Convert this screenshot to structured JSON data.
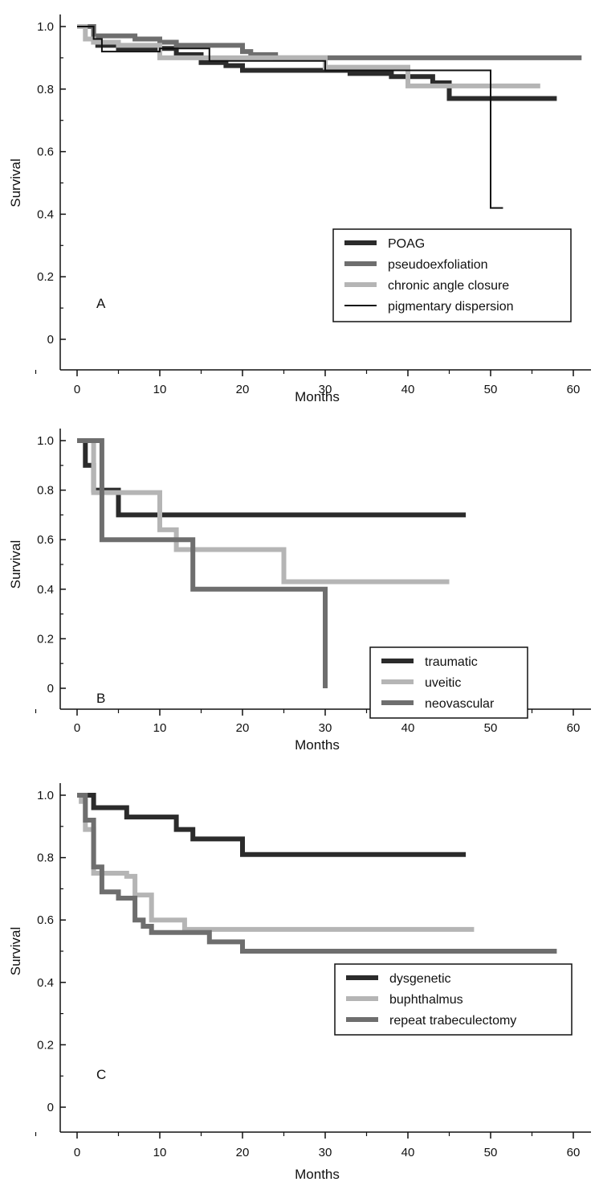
{
  "chart_data": [
    {
      "type": "line",
      "step": true,
      "panel_label": "A",
      "xlabel": "Months",
      "ylabel": "Survival",
      "xlim": [
        0,
        60
      ],
      "ylim": [
        0,
        1.0
      ],
      "x_ticks": [
        0,
        10,
        20,
        30,
        40,
        50,
        60
      ],
      "y_ticks": [
        0,
        0.2,
        0.4,
        0.6,
        0.8,
        1.0
      ],
      "x_tick_labels": [
        "0",
        "10",
        "20",
        "30",
        "40",
        "50",
        "60"
      ],
      "y_tick_labels": [
        "0",
        "0.2",
        "0.4",
        "0.6",
        "0.8",
        "1.0"
      ],
      "legend_position": "right",
      "series": [
        {
          "name": "POAG",
          "color": "#2b2b2b",
          "width": 6,
          "x": [
            0,
            2,
            2.5,
            5,
            12,
            15,
            18,
            20,
            33,
            38,
            43,
            45,
            58
          ],
          "y": [
            1.0,
            0.95,
            0.94,
            0.93,
            0.91,
            0.885,
            0.875,
            0.86,
            0.85,
            0.84,
            0.82,
            0.77,
            0.77
          ]
        },
        {
          "name": "pseudoexfoliation",
          "color": "#6e6e6e",
          "width": 6,
          "x": [
            0,
            2,
            7,
            10,
            12,
            20,
            21,
            24,
            61
          ],
          "y": [
            1.0,
            0.97,
            0.96,
            0.95,
            0.94,
            0.92,
            0.91,
            0.9,
            0.9
          ]
        },
        {
          "name": "chronic angle closure",
          "color": "#b5b5b5",
          "width": 6,
          "x": [
            0,
            1,
            2,
            5,
            10,
            30,
            40,
            56
          ],
          "y": [
            1.0,
            0.96,
            0.95,
            0.94,
            0.9,
            0.87,
            0.81,
            0.81
          ]
        },
        {
          "name": "pigmentary dispersion",
          "color": "#111111",
          "width": 2,
          "x": [
            0,
            2,
            3,
            10,
            16,
            30,
            50,
            51.5
          ],
          "y": [
            1.0,
            0.96,
            0.92,
            0.93,
            0.89,
            0.86,
            0.42,
            0.42
          ]
        }
      ]
    },
    {
      "type": "line",
      "step": true,
      "panel_label": "B",
      "xlabel": "Months",
      "ylabel": "Survival",
      "xlim": [
        0,
        60
      ],
      "ylim": [
        0,
        1.0
      ],
      "x_ticks": [
        0,
        10,
        20,
        30,
        40,
        50,
        60
      ],
      "y_ticks": [
        0,
        0.2,
        0.4,
        0.6,
        0.8,
        1.0
      ],
      "x_tick_labels": [
        "0",
        "10",
        "20",
        "30",
        "40",
        "50",
        "60"
      ],
      "y_tick_labels": [
        "0",
        "0.2",
        "0.4",
        "0.6",
        "0.8",
        "1.0"
      ],
      "legend_position": "right",
      "series": [
        {
          "name": "traumatic",
          "color": "#2b2b2b",
          "width": 6,
          "x": [
            0,
            1,
            2,
            5,
            47
          ],
          "y": [
            1.0,
            0.9,
            0.8,
            0.7,
            0.7
          ]
        },
        {
          "name": "uveitic",
          "color": "#b5b5b5",
          "width": 6,
          "x": [
            0,
            2,
            10,
            12,
            25,
            45
          ],
          "y": [
            1.0,
            0.79,
            0.64,
            0.56,
            0.43,
            0.43
          ]
        },
        {
          "name": "neovascular",
          "color": "#6e6e6e",
          "width": 6,
          "x": [
            0,
            3,
            14,
            30,
            30
          ],
          "y": [
            1.0,
            0.6,
            0.4,
            0.4,
            0.0
          ]
        }
      ]
    },
    {
      "type": "line",
      "step": true,
      "panel_label": "C",
      "xlabel": "Months",
      "ylabel": "Survival",
      "xlim": [
        0,
        60
      ],
      "ylim": [
        0,
        1.0
      ],
      "x_ticks": [
        0,
        10,
        20,
        30,
        40,
        50,
        60
      ],
      "y_ticks": [
        0,
        0.2,
        0.4,
        0.6,
        0.8,
        1.0
      ],
      "x_tick_labels": [
        "0",
        "10",
        "20",
        "30",
        "40",
        "50",
        "60"
      ],
      "y_tick_labels": [
        "0",
        "0.2",
        "0.4",
        "0.6",
        "0.8",
        "1.0"
      ],
      "legend_position": "right",
      "series": [
        {
          "name": "dysgenetic",
          "color": "#2b2b2b",
          "width": 6,
          "x": [
            0,
            2,
            6,
            12,
            14,
            16,
            20,
            47
          ],
          "y": [
            1.0,
            0.96,
            0.93,
            0.89,
            0.86,
            0.86,
            0.81,
            0.81
          ]
        },
        {
          "name": "buphthalmus",
          "color": "#b5b5b5",
          "width": 6,
          "x": [
            0,
            0.5,
            1,
            2,
            6,
            7,
            9,
            13,
            48
          ],
          "y": [
            1.0,
            0.98,
            0.89,
            0.75,
            0.74,
            0.68,
            0.6,
            0.57,
            0.57
          ]
        },
        {
          "name": "repeat trabeculectomy",
          "color": "#6e6e6e",
          "width": 6,
          "x": [
            0,
            1,
            2,
            3,
            5,
            7,
            8,
            9,
            16,
            20,
            58
          ],
          "y": [
            1.0,
            0.92,
            0.77,
            0.69,
            0.67,
            0.6,
            0.58,
            0.56,
            0.53,
            0.5,
            0.5
          ]
        }
      ]
    }
  ]
}
